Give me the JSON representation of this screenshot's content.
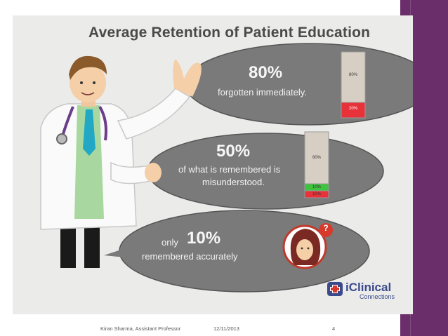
{
  "slide": {
    "title": "Average Retention of Patient Education",
    "bubbles": [
      {
        "percent": "80%",
        "text": "forgotten immediately.",
        "bar": {
          "segments": [
            "80%",
            "20%"
          ]
        }
      },
      {
        "percent": "50%",
        "line1": "of what is remembered is",
        "line2": "misunderstood.",
        "bar": {
          "segments": [
            "80%",
            "10%",
            "10%"
          ]
        }
      },
      {
        "prefix": "only",
        "percent": "10%",
        "text": "remembered accurately"
      }
    ],
    "question_badge": "?",
    "logo": {
      "brand": "iClinical",
      "sub": "Connections"
    }
  },
  "footer": {
    "author": "Kiran Sharma, Assistant Professor",
    "date": "12/11/2013",
    "page": "4"
  },
  "colors": {
    "bubble": "#7a7a7a",
    "bar_beige": "#d8cfc4",
    "bar_red": "#e8323a",
    "bar_green": "#3ec33e",
    "accent_band": "#6a2e6a"
  }
}
